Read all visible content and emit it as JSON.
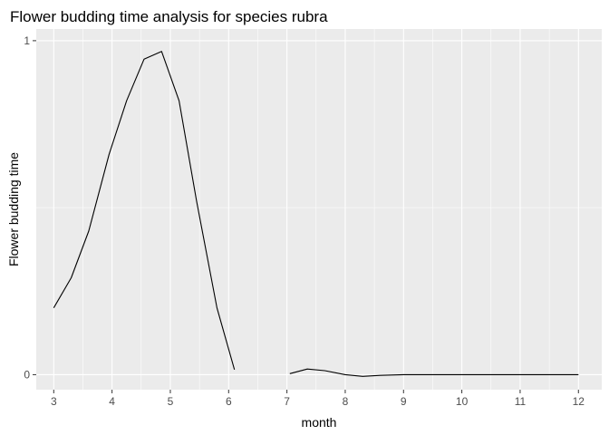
{
  "chart_data": {
    "type": "line",
    "title": "Flower budding time analysis for species rubra",
    "xlabel": "month",
    "ylabel": "Flower budding time",
    "xlim": [
      2.7,
      12.4
    ],
    "ylim": [
      -0.045,
      1.035
    ],
    "x_ticks": [
      3,
      4,
      5,
      6,
      7,
      8,
      9,
      10,
      11,
      12
    ],
    "y_ticks": [
      0,
      1
    ],
    "grid": true,
    "panel_background": "#ebebeb",
    "grid_color": "#ffffff",
    "line_color": "#000000",
    "series": [
      {
        "segments": [
          [
            {
              "x": 3.0,
              "y": 0.2
            },
            {
              "x": 3.3,
              "y": 0.29
            },
            {
              "x": 3.6,
              "y": 0.43
            },
            {
              "x": 3.95,
              "y": 0.66
            },
            {
              "x": 4.25,
              "y": 0.82
            },
            {
              "x": 4.55,
              "y": 0.945
            },
            {
              "x": 4.85,
              "y": 0.968
            },
            {
              "x": 5.15,
              "y": 0.82
            },
            {
              "x": 5.45,
              "y": 0.52
            },
            {
              "x": 5.8,
              "y": 0.2
            },
            {
              "x": 6.1,
              "y": 0.015
            }
          ],
          [
            {
              "x": 7.05,
              "y": 0.003
            },
            {
              "x": 7.35,
              "y": 0.017
            },
            {
              "x": 7.65,
              "y": 0.012
            },
            {
              "x": 8.0,
              "y": 0.0
            },
            {
              "x": 8.3,
              "y": -0.005
            },
            {
              "x": 8.6,
              "y": -0.002
            },
            {
              "x": 9.0,
              "y": 0.0
            },
            {
              "x": 10.0,
              "y": 0.0
            },
            {
              "x": 11.0,
              "y": 0.0
            },
            {
              "x": 12.0,
              "y": 0.0
            }
          ]
        ]
      }
    ]
  }
}
